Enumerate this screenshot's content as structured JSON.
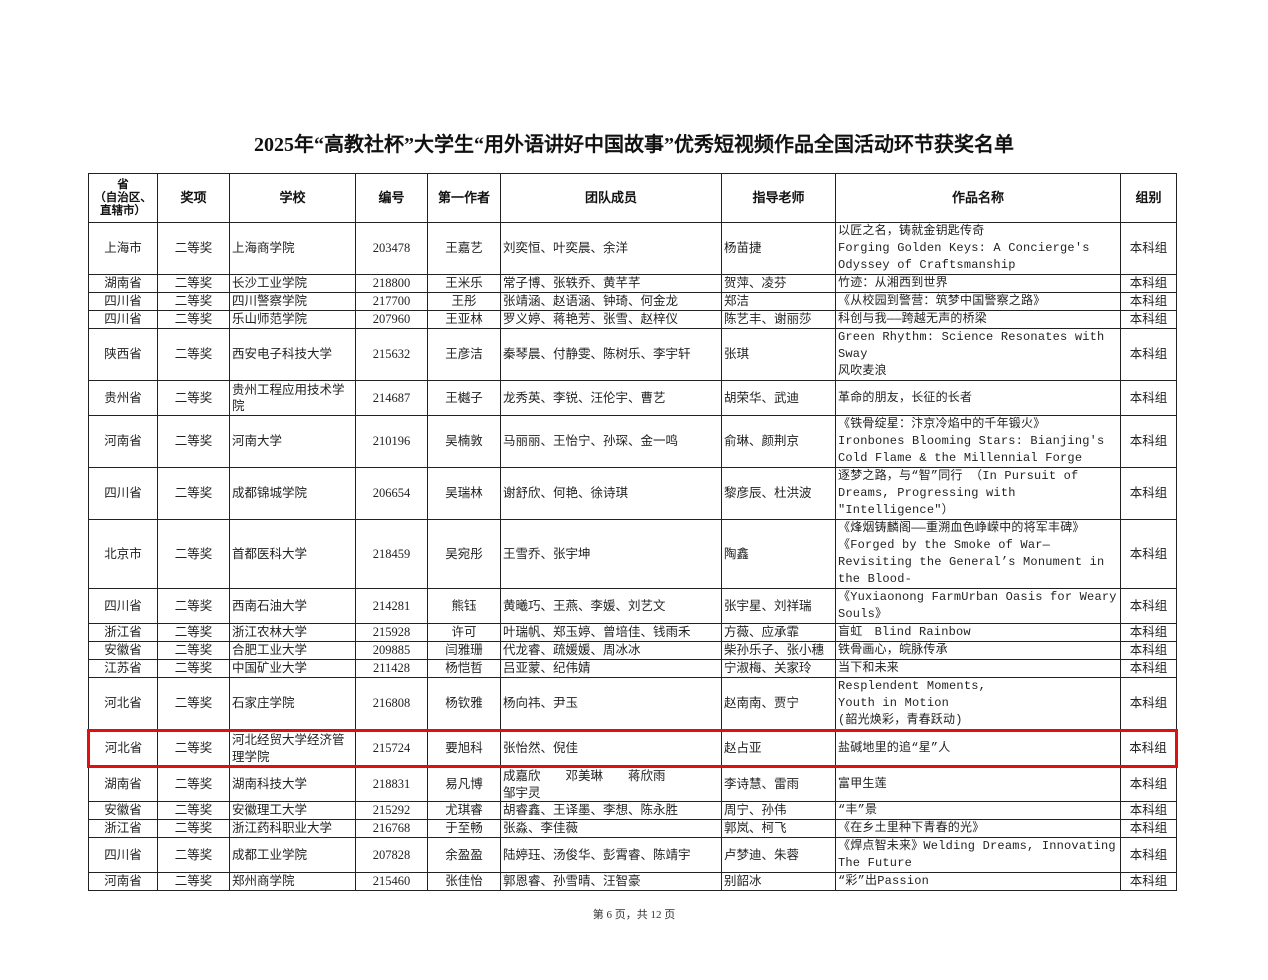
{
  "title": "2025年“高教社杯”大学生“用外语讲好中国故事”优秀短视频作品全国活动环节获奖名单",
  "table": {
    "headers": [
      "省\n（自治区、\n直辖市）",
      "奖项",
      "学校",
      "编号",
      "第一作者",
      "团队成员",
      "指导老师",
      "作品名称",
      "组别"
    ],
    "highlight_color": "#e01010",
    "highlighted_row_index": 14,
    "rows": [
      [
        "上海市",
        "二等奖",
        "上海商学院",
        "203478",
        "王嘉艺",
        "刘奕恒、叶奕晨、余洋",
        "杨苗捷",
        "以匠之名，铸就金钥匙传奇\nForging Golden Keys: A Concierge's Odyssey of Craftsmanship",
        "本科组"
      ],
      [
        "湖南省",
        "二等奖",
        "长沙工业学院",
        "218800",
        "王米乐",
        "常子博、张轶乔、黄芊芊",
        "贺萍、凌芬",
        "竹迹：从湘西到世界",
        "本科组"
      ],
      [
        "四川省",
        "二等奖",
        "四川警察学院",
        "217700",
        "王彤",
        "张靖涵、赵语涵、钟琦、何金龙",
        "郑洁",
        "《从校园到警营：筑梦中国警察之路》",
        "本科组"
      ],
      [
        "四川省",
        "二等奖",
        "乐山师范学院",
        "207960",
        "王亚林",
        "罗义婷、蒋艳芳、张雪、赵梓仪",
        "陈艺丰、谢丽莎",
        "科创与我——跨越无声的桥梁",
        "本科组"
      ],
      [
        "陕西省",
        "二等奖",
        "西安电子科技大学",
        "215632",
        "王彦洁",
        "秦琴晨、付静雯、陈树乐、李宇轩",
        "张琪",
        "Green Rhythm: Science Resonates with Sway\n风吹麦浪",
        "本科组"
      ],
      [
        "贵州省",
        "二等奖",
        "贵州工程应用技术学院",
        "214687",
        "王樾子",
        "龙秀英、李锐、汪伦宇、曹艺",
        "胡荣华、武迪",
        "革命的朋友，长征的长者",
        "本科组"
      ],
      [
        "河南省",
        "二等奖",
        "河南大学",
        "210196",
        "吴楠敦",
        "马丽丽、王怡宁、孙琛、金一鸣",
        "俞琳、颜荆京",
        "《铁骨绽星：汴京冷焰中的千年锻火》\nIronbones Blooming Stars: Bianjing's Cold Flame & the Millennial Forge",
        "本科组"
      ],
      [
        "四川省",
        "二等奖",
        "成都锦城学院",
        "206654",
        "吴瑞林",
        "谢舒欣、何艳、徐诗琪",
        "黎彦辰、杜洪波",
        "逐梦之路，与“智”同行 （In Pursuit of Dreams, Progressing with \"Intelligence\"）",
        "本科组"
      ],
      [
        "北京市",
        "二等奖",
        "首都医科大学",
        "218459",
        "吴宛彤",
        "王雪乔、张宇坤",
        "陶鑫",
        "《烽烟铸麟阁——重溯血色峥嵘中的将军丰碑》\n《Forged by the Smoke of War—Revisiting the General’s Monument in the Blood-",
        "本科组"
      ],
      [
        "四川省",
        "二等奖",
        "西南石油大学",
        "214281",
        "熊钰",
        "黄曦巧、王燕、李媛、刘艺文",
        "张宇星、刘祥瑞",
        "《Yuxiaonong FarmUrban Oasis for Weary Souls》",
        "本科组"
      ],
      [
        "浙江省",
        "二等奖",
        "浙江农林大学",
        "215928",
        "许可",
        "叶瑞帆、郑玉婷、曾培佳、钱雨禾",
        "方薇、应承霏",
        "盲虹　Blind Rainbow",
        "本科组"
      ],
      [
        "安徽省",
        "二等奖",
        "合肥工业大学",
        "209885",
        "闫雅珊",
        "代龙睿、疏媛媛、周冰冰",
        "柴孙乐子、张小穗",
        "铁骨画心，皖脉传承",
        "本科组"
      ],
      [
        "江苏省",
        "二等奖",
        "中国矿业大学",
        "211428",
        "杨恺哲",
        "吕亚蒙、纪伟婧",
        "宁淑梅、关家玲",
        "当下和未来",
        "本科组"
      ],
      [
        "河北省",
        "二等奖",
        "石家庄学院",
        "216808",
        "杨钦雅",
        "杨向祎、尹玉",
        "赵南南、贾宁",
        "Resplendent Moments,\nYouth in Motion\n(韶光焕彩，青春跃动)",
        "本科组"
      ],
      [
        "河北省",
        "二等奖",
        "河北经贸大学经济管理学院",
        "215724",
        "要旭科",
        "张怡然、倪佳",
        "赵占亚",
        "盐碱地里的追“星”人",
        "本科组"
      ],
      [
        "湖南省",
        "二等奖",
        "湖南科技大学",
        "218831",
        "易凡博",
        "成嘉欣　　邓美琳　　蒋欣雨\n邹宇灵",
        "李诗慧、雷雨",
        "富甲生莲",
        "本科组"
      ],
      [
        "安徽省",
        "二等奖",
        "安徽理工大学",
        "215292",
        "尤琪睿",
        "胡睿鑫、王译墨、李想、陈永胜",
        "周宁、孙伟",
        "“丰”景",
        "本科组"
      ],
      [
        "浙江省",
        "二等奖",
        "浙江药科职业大学",
        "216768",
        "于至畅",
        "张淼、李佳薇",
        "郭岚、柯飞",
        "《在乡土里种下青春的光》",
        "本科组"
      ],
      [
        "四川省",
        "二等奖",
        "成都工业学院",
        "207828",
        "余盈盈",
        "陆婷珏、汤俊华、彭霄睿、陈靖宇",
        "卢梦迪、朱蓉",
        "《焊点智未来》Welding Dreams, Innovating The Future",
        "本科组"
      ],
      [
        "河南省",
        "二等奖",
        "郑州商学院",
        "215460",
        "张佳怡",
        "郭恩睿、孙雪晴、汪智豪",
        "别韶冰",
        "“彩”出Passion",
        "本科组"
      ]
    ]
  },
  "footer": "第 6 页，共 12 页"
}
